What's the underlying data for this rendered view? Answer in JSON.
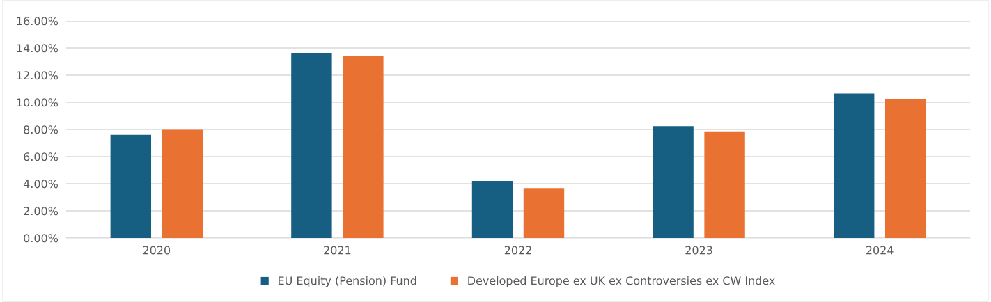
{
  "chart_data": {
    "type": "bar",
    "categories": [
      "2020",
      "2021",
      "2022",
      "2023",
      "2024"
    ],
    "series": [
      {
        "name": "EU Equity (Pension) Fund",
        "color": "#165f82",
        "values": [
          7.6,
          13.64,
          4.2,
          8.24,
          10.64
        ]
      },
      {
        "name": "Developed Europe ex UK ex Controversies ex CW Index",
        "color": "#e97132",
        "values": [
          7.97,
          13.43,
          3.68,
          7.86,
          10.26
        ]
      }
    ],
    "ylim": [
      0,
      16
    ],
    "yticks": [
      {
        "value": 0,
        "label": "0.00%"
      },
      {
        "value": 2,
        "label": "2.00%"
      },
      {
        "value": 4,
        "label": "4.00%"
      },
      {
        "value": 6,
        "label": "6.00%"
      },
      {
        "value": 8,
        "label": "8.00%"
      },
      {
        "value": 10,
        "label": "10.00%"
      },
      {
        "value": 12,
        "label": "12.00%"
      },
      {
        "value": 14,
        "label": "14.00%"
      },
      {
        "value": 16,
        "label": "16.00%"
      }
    ],
    "grid": "y",
    "legend": "bottom"
  }
}
